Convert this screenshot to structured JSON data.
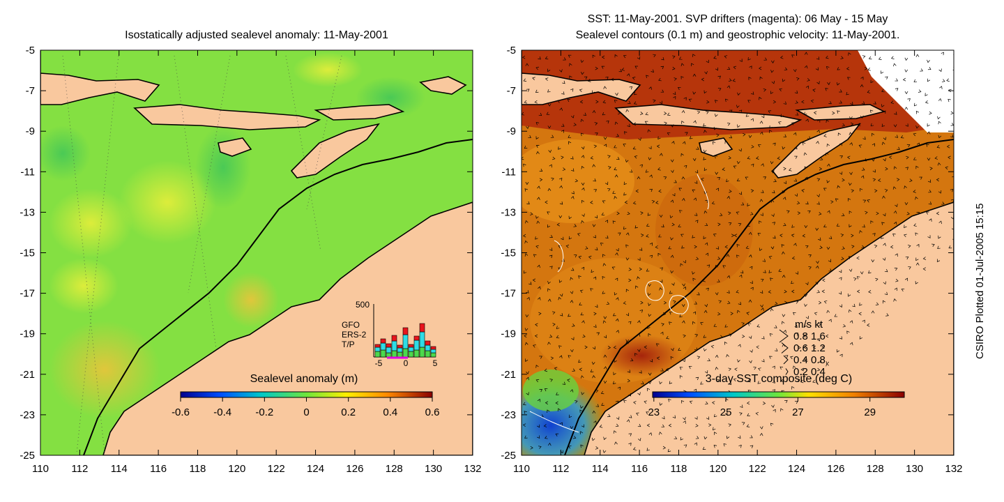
{
  "left_panel": {
    "title": "Isostatically adjusted sealevel anomaly: 11-May-2001",
    "colorbar": {
      "label": "Sealevel anomaly (m)",
      "ticks": [
        "-0.6",
        "-0.4",
        "-0.2",
        "0",
        "0.2",
        "0.4",
        "0.6"
      ]
    },
    "inset": {
      "ymax_label": "500",
      "legend": [
        "GFO",
        "ERS-2",
        "T/P"
      ],
      "legend_colors": [
        "#e8141c",
        "#2fdce6",
        "#4cd94c"
      ],
      "xticks": [
        "-5",
        "0",
        "5"
      ]
    }
  },
  "right_panel": {
    "title_line1": "SST: 11-May-2001. SVP drifters (magenta): 06 May - 15 May",
    "title_line2": "Sealevel contours (0.1 m) and geostrophic velocity: 11-May-2001.",
    "colorbar": {
      "label": "3-day SST composite (deg C)",
      "ticks": [
        "23",
        "25",
        "27",
        "29"
      ]
    },
    "velocity_key": {
      "header": "m/s  kt",
      "rows": [
        "0.8  1.6",
        "0.6  1.2",
        "0.4  0.8",
        "0.2  0.4"
      ]
    }
  },
  "axes": {
    "x_ticks": [
      "110",
      "112",
      "114",
      "116",
      "118",
      "120",
      "122",
      "124",
      "126",
      "128",
      "130",
      "132"
    ],
    "y_ticks": [
      "-5",
      "-7",
      "-9",
      "-11",
      "-13",
      "-15",
      "-17",
      "-19",
      "-21",
      "-23",
      "-25"
    ]
  },
  "footer": {
    "stamp": "CSIRO Plotted 01-Jul-2005 15:15"
  },
  "colors": {
    "land": "#f9c89e",
    "sla_base": "#7ee03c",
    "sst_base": "#d2730f",
    "sst_warm_north": "#a31a08"
  }
}
